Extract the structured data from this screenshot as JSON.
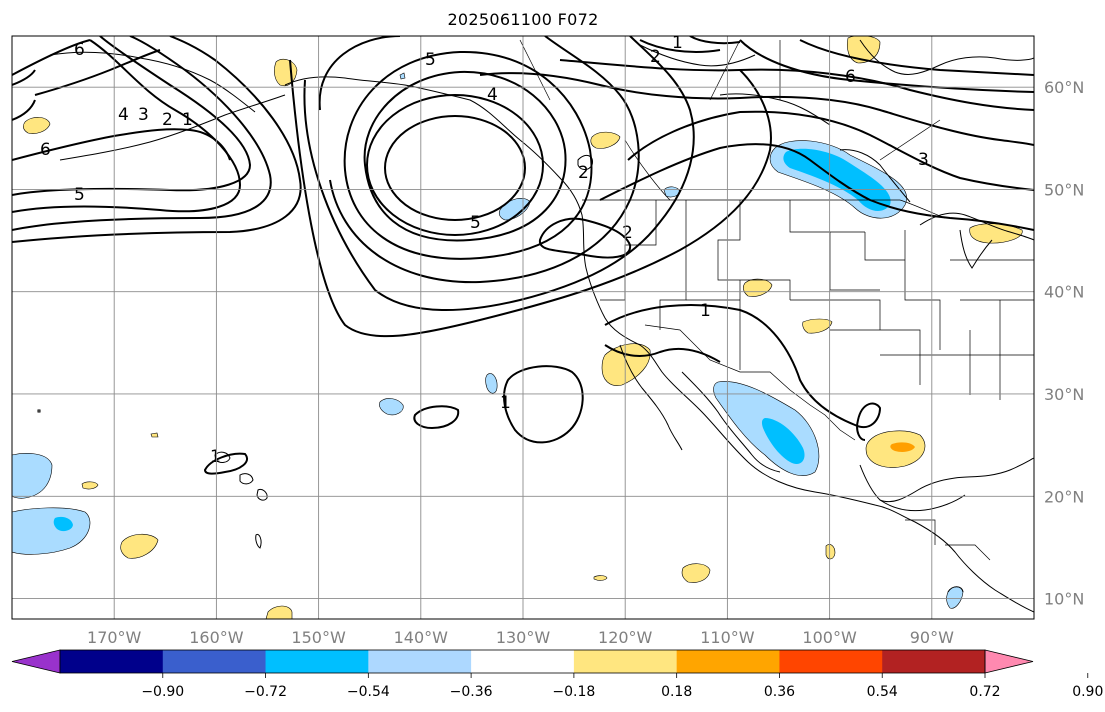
{
  "title": "2025061100 F072",
  "map": {
    "lon_range": [
      -180,
      -80
    ],
    "lat_range": [
      8,
      65
    ],
    "lat_ticks": [
      {
        "value": 60,
        "label": "60°N"
      },
      {
        "value": 50,
        "label": "50°N"
      },
      {
        "value": 40,
        "label": "40°N"
      },
      {
        "value": 30,
        "label": "30°N"
      },
      {
        "value": 20,
        "label": "20°N"
      },
      {
        "value": 10,
        "label": "10°N"
      }
    ],
    "lon_ticks": [
      {
        "value": -170,
        "label": "170°W"
      },
      {
        "value": -160,
        "label": "160°W"
      },
      {
        "value": -150,
        "label": "150°W"
      },
      {
        "value": -140,
        "label": "140°W"
      },
      {
        "value": -130,
        "label": "130°W"
      },
      {
        "value": -120,
        "label": "120°W"
      },
      {
        "value": -110,
        "label": "110°W"
      },
      {
        "value": -100,
        "label": "100°W"
      },
      {
        "value": -90,
        "label": "90°W"
      }
    ],
    "contour_labels": [
      "6",
      "5",
      "4",
      "3",
      "2",
      "1",
      "6",
      "5",
      "5",
      "4",
      "2",
      "1",
      "2",
      "6",
      "3",
      "2",
      "1",
      "1",
      "1"
    ],
    "fill_colors": {
      "neg_weak": "#aadcff",
      "neg_mid": "#00bfff",
      "pos_weak": "#ffe680",
      "pos_mid": "#ff9f00"
    }
  },
  "colorbar": {
    "colors": [
      "#9932cc",
      "#00008b",
      "#3a5fcd",
      "#00bfff",
      "#add8ff",
      "#ffffff",
      "#ffe680",
      "#ffa500",
      "#ff4500",
      "#b22222",
      "#ff89b0"
    ],
    "labels": [
      "−0.90",
      "−0.72",
      "−0.54",
      "−0.36",
      "−0.18",
      "0.18",
      "0.36",
      "0.54",
      "0.72",
      "0.90"
    ]
  }
}
